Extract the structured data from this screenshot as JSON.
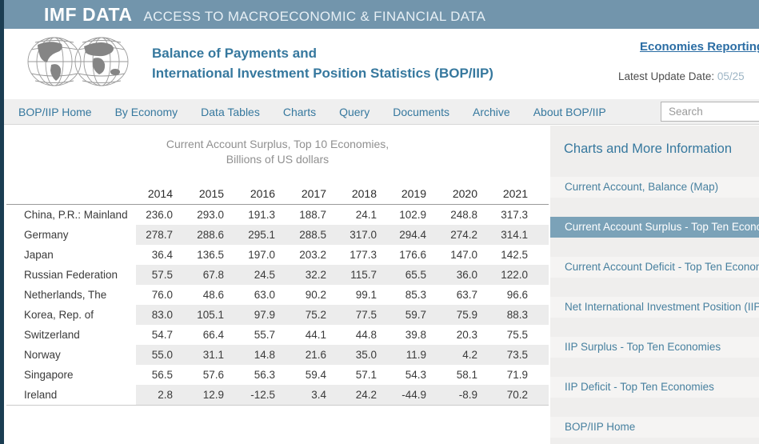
{
  "topbar": {
    "brand": "IMF DATA",
    "tagline": "ACCESS TO MACROECONOMIC & FINANCIAL DATA"
  },
  "header": {
    "title_line1": "Balance of Payments and",
    "title_line2": "International Investment Position Statistics (BOP/IIP)",
    "link": "Economies Reporting",
    "update_label": "Latest Update Date:",
    "update_value": "05/25"
  },
  "nav": {
    "items": [
      "BOP/IIP Home",
      "By Economy",
      "Data Tables",
      "Charts",
      "Query",
      "Documents",
      "Archive",
      "About BOP/IIP"
    ],
    "search_placeholder": "Search"
  },
  "table": {
    "title_line1": "Current Account Surplus, Top 10 Economies,",
    "title_line2": "Billions of US dollars",
    "years": [
      "2014",
      "2015",
      "2016",
      "2017",
      "2018",
      "2019",
      "2020",
      "2021"
    ],
    "rows": [
      {
        "name": "China, P.R.: Mainland",
        "values": [
          "236.0",
          "293.0",
          "191.3",
          "188.7",
          "24.1",
          "102.9",
          "248.8",
          "317.3"
        ]
      },
      {
        "name": "Germany",
        "values": [
          "278.7",
          "288.6",
          "295.1",
          "288.5",
          "317.0",
          "294.4",
          "274.2",
          "314.1"
        ]
      },
      {
        "name": "Japan",
        "values": [
          "36.4",
          "136.5",
          "197.0",
          "203.2",
          "177.3",
          "176.6",
          "147.0",
          "142.5"
        ]
      },
      {
        "name": "Russian Federation",
        "values": [
          "57.5",
          "67.8",
          "24.5",
          "32.2",
          "115.7",
          "65.5",
          "36.0",
          "122.0"
        ]
      },
      {
        "name": "Netherlands, The",
        "values": [
          "76.0",
          "48.6",
          "63.0",
          "90.2",
          "99.1",
          "85.3",
          "63.7",
          "96.6"
        ]
      },
      {
        "name": "Korea, Rep. of",
        "values": [
          "83.0",
          "105.1",
          "97.9",
          "75.2",
          "77.5",
          "59.7",
          "75.9",
          "88.3"
        ]
      },
      {
        "name": "Switzerland",
        "values": [
          "54.7",
          "66.4",
          "55.7",
          "44.1",
          "44.8",
          "39.8",
          "20.3",
          "75.5"
        ]
      },
      {
        "name": "Norway",
        "values": [
          "55.0",
          "31.1",
          "14.8",
          "21.6",
          "35.0",
          "11.9",
          "4.2",
          "73.5"
        ]
      },
      {
        "name": "Singapore",
        "values": [
          "56.5",
          "57.6",
          "56.3",
          "59.4",
          "57.1",
          "54.3",
          "58.1",
          "71.9"
        ]
      },
      {
        "name": "Ireland",
        "values": [
          "2.8",
          "12.9",
          "-12.5",
          "3.4",
          "24.2",
          "-44.9",
          "-8.9",
          "70.2"
        ]
      }
    ]
  },
  "sidebar": {
    "heading": "Charts and More Information",
    "items": [
      {
        "label": "Current Account, Balance (Map)",
        "selected": false
      },
      {
        "label": "Current Account Surplus - Top Ten Economies",
        "selected": true
      },
      {
        "label": "Current Account Deficit - Top Ten Economies",
        "selected": false
      },
      {
        "label": "Net International Investment Position (IIP) at",
        "selected": false
      },
      {
        "label": "IIP Surplus - Top Ten Economies",
        "selected": false
      },
      {
        "label": "IIP Deficit - Top Ten Economies",
        "selected": false
      },
      {
        "label": "BOP/IIP Home",
        "selected": false
      }
    ]
  },
  "colors": {
    "topbar_bg": "#7295ac",
    "accent_teal": "#36789e",
    "selected_item_bg": "#7ba2b8",
    "sidebar_bg": "#efeeed",
    "stripe": "#ececec",
    "left_edge": "#1b3d52",
    "link_blue": "#2b6da4"
  }
}
